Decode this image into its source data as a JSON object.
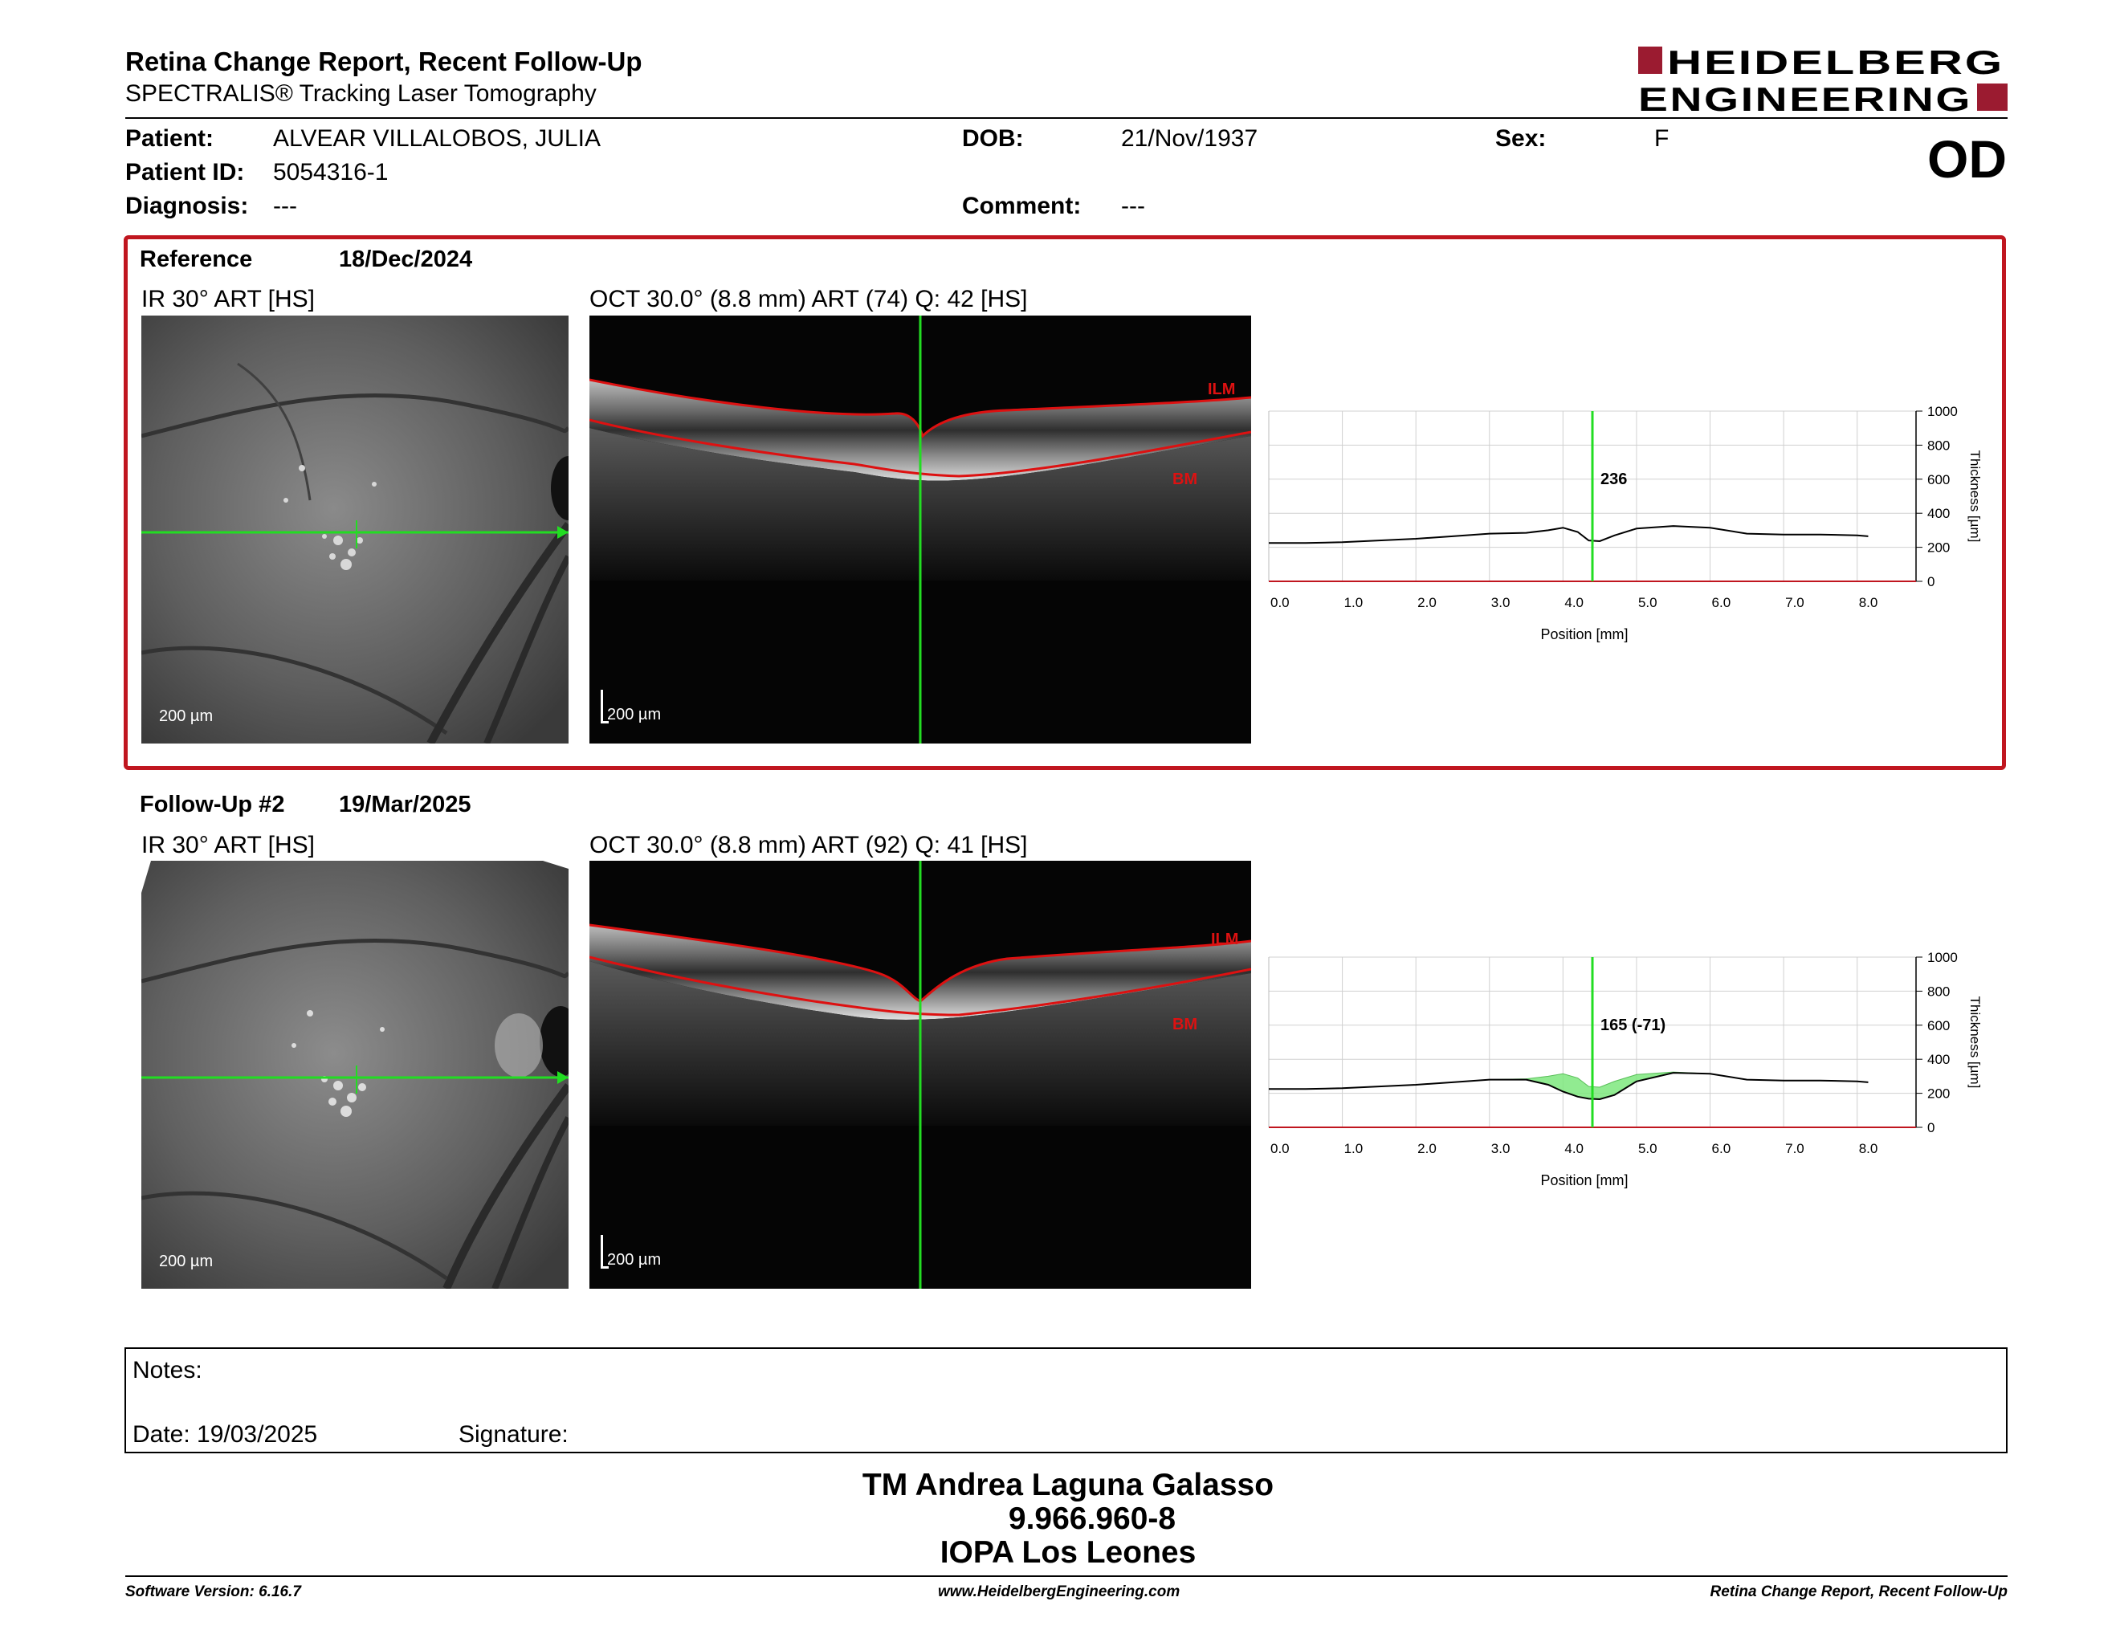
{
  "header": {
    "title": "Retina Change Report, Recent Follow-Up",
    "subtitle": "SPECTRALIS® Tracking Laser Tomography",
    "logo_line1": "HEIDELBERG",
    "logo_line2": "ENGINEERING",
    "eye": "OD"
  },
  "patient": {
    "patient_label": "Patient:",
    "patient_value": "ALVEAR VILLALOBOS, JULIA",
    "dob_label": "DOB:",
    "dob_value": "21/Nov/1937",
    "sex_label": "Sex:",
    "sex_value": "F",
    "id_label": "Patient ID:",
    "id_value": "5054316-1",
    "diagnosis_label": "Diagnosis:",
    "diagnosis_value": "---",
    "comment_label": "Comment:",
    "comment_value": "---"
  },
  "reference": {
    "label": "Reference",
    "date": "18/Dec/2024",
    "ir_title": "IR 30° ART [HS]",
    "oct_title": "OCT 30.0° (8.8 mm) ART (74) Q: 42 [HS]",
    "ir_scale": "200 µm",
    "oct_scale": "200 µm",
    "ilm_label": "ILM",
    "bm_label": "BM",
    "thickness_label": "236"
  },
  "followup": {
    "label": "Follow-Up #2",
    "date": "19/Mar/2025",
    "ir_title": "IR 30° ART [HS]",
    "oct_title": "OCT 30.0° (8.8 mm) ART (92) Q: 41 [HS]",
    "ir_scale": "200 µm",
    "oct_scale": "200 µm",
    "ilm_label": "ILM",
    "bm_label": "BM",
    "thickness_label": "165 (-71)"
  },
  "chart_data": [
    {
      "type": "line",
      "xlabel": "Position [mm]",
      "ylabel": "Thickness [µm]",
      "xlim": [
        0,
        8.8
      ],
      "ylim": [
        0,
        1000
      ],
      "xticks": [
        "0.0",
        "1.0",
        "2.0",
        "3.0",
        "4.0",
        "5.0",
        "6.0",
        "7.0",
        "8.0"
      ],
      "yticks": [
        "0",
        "200",
        "400",
        "600",
        "800",
        "1000"
      ],
      "grid": true,
      "cursor_x": 4.4,
      "cursor_label": "236",
      "x": [
        0.0,
        0.5,
        1.0,
        1.5,
        2.0,
        2.5,
        3.0,
        3.5,
        3.8,
        4.0,
        4.2,
        4.35,
        4.5,
        4.7,
        5.0,
        5.5,
        6.0,
        6.5,
        7.0,
        7.5,
        8.0,
        8.15
      ],
      "values": [
        225,
        225,
        230,
        240,
        250,
        265,
        280,
        285,
        300,
        315,
        290,
        240,
        236,
        270,
        310,
        325,
        315,
        280,
        275,
        275,
        270,
        265
      ]
    },
    {
      "type": "area",
      "xlabel": "Position [mm]",
      "ylabel": "Thickness [µm]",
      "xlim": [
        0,
        8.8
      ],
      "ylim": [
        0,
        1000
      ],
      "xticks": [
        "0.0",
        "1.0",
        "2.0",
        "3.0",
        "4.0",
        "5.0",
        "6.0",
        "7.0",
        "8.0"
      ],
      "yticks": [
        "0",
        "200",
        "400",
        "600",
        "800",
        "1000"
      ],
      "grid": true,
      "cursor_x": 4.4,
      "cursor_label": "165 (-71)",
      "x": [
        0.0,
        0.5,
        1.0,
        1.5,
        2.0,
        2.5,
        3.0,
        3.5,
        3.8,
        4.0,
        4.2,
        4.35,
        4.5,
        4.7,
        5.0,
        5.5,
        6.0,
        6.5,
        7.0,
        7.5,
        8.0,
        8.15
      ],
      "values": [
        225,
        225,
        230,
        240,
        250,
        265,
        280,
        280,
        250,
        210,
        180,
        168,
        165,
        190,
        270,
        320,
        315,
        280,
        275,
        275,
        270,
        265
      ],
      "reference_values": [
        225,
        225,
        230,
        240,
        250,
        265,
        280,
        285,
        300,
        315,
        290,
        240,
        236,
        270,
        310,
        325,
        315,
        280,
        275,
        275,
        270,
        265
      ]
    }
  ],
  "notes": {
    "label": "Notes:",
    "date_label": "Date: 19/03/2025",
    "signature_label": "Signature:"
  },
  "signature_block": {
    "line1": "TM Andrea Laguna Galasso",
    "line2": "9.966.960-8",
    "line3": "IOPA Los Leones"
  },
  "footer": {
    "left": "Software Version: 6.16.7",
    "center": "www.HeidelbergEngineering.com",
    "right": "Retina Change Report, Recent Follow-Up"
  }
}
